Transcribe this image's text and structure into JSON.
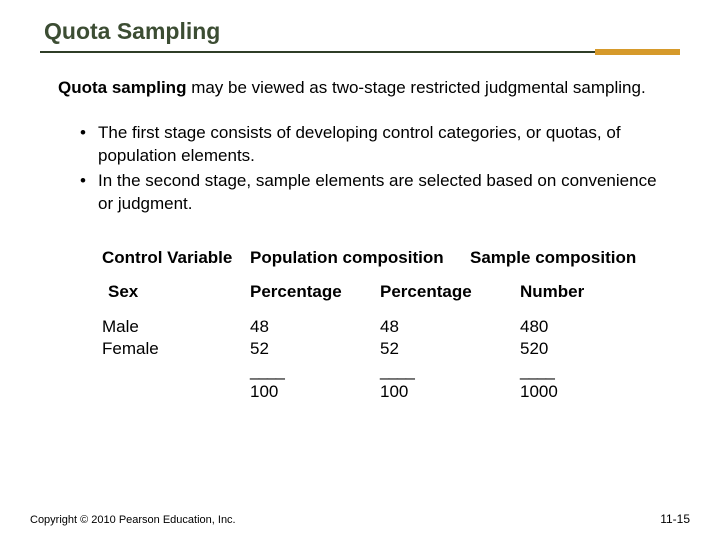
{
  "title": "Quota Sampling",
  "intro_term": "Quota sampling",
  "intro_rest": " may be viewed as two-stage restricted judgmental sampling.",
  "bullets": [
    "The first stage consists of developing control categories, or quotas, of population elements.",
    "In the second stage, sample elements are selected based on convenience or judgment."
  ],
  "table": {
    "headers": {
      "c1": "Control Variable",
      "c2": "Population composition",
      "c3": "Sample composition"
    },
    "sub": {
      "s1": "Sex",
      "s2": "Percentage",
      "s3": "Percentage",
      "s4": "Number"
    },
    "rows": [
      {
        "label": "Male",
        "pop_pct": "48",
        "samp_pct": "48",
        "samp_num": "480"
      },
      {
        "label": "Female",
        "pop_pct": "52",
        "samp_pct": "52",
        "samp_num": "520"
      }
    ],
    "rule": "____",
    "totals": {
      "pop_pct": "100",
      "samp_pct": "100",
      "samp_num": "1000"
    }
  },
  "footer": {
    "copyright": "Copyright © 2010 Pearson Education, Inc.",
    "page": "11-15"
  },
  "colors": {
    "title": "#3c4d33",
    "accent": "#d69a2b",
    "rule": "#2f3d27"
  }
}
